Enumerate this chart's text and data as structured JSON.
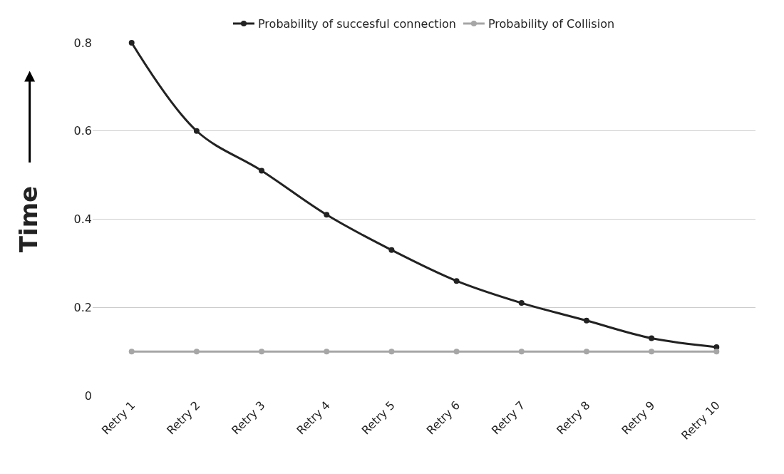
{
  "chart_data": {
    "type": "line",
    "ylabel": "Time",
    "categories": [
      "Retry 1",
      "Retry 2",
      "Retry 3",
      "Retry 4",
      "Retry 5",
      "Retry 6",
      "Retry 7",
      "Retry 8",
      "Retry 9",
      "Retry 10"
    ],
    "series": [
      {
        "name": "Probability of succesful connection",
        "color": "#222222",
        "values": [
          0.8,
          0.6,
          0.51,
          0.41,
          0.33,
          0.26,
          0.21,
          0.17,
          0.13,
          0.11
        ]
      },
      {
        "name": "Probability of Collision",
        "color": "#a6a6a6",
        "values": [
          0.1,
          0.1,
          0.1,
          0.1,
          0.1,
          0.1,
          0.1,
          0.1,
          0.1,
          0.1
        ]
      }
    ],
    "ylim": [
      0,
      0.8
    ],
    "yticks": [
      0,
      0.2,
      0.4,
      0.6,
      0.8
    ],
    "grid": "y",
    "legend": "top",
    "marker": "circle",
    "line_style": "solid"
  }
}
